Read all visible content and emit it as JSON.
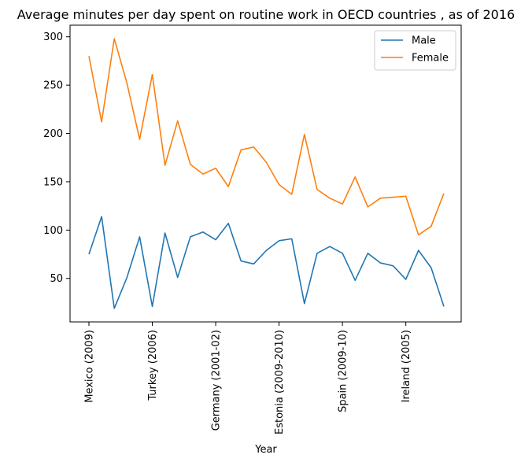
{
  "chart_data": {
    "type": "line",
    "title": "Average minutes per day spent on routine work in OECD countries , as of 2016",
    "xlabel": "Year",
    "ylabel": "",
    "ylim": [
      5,
      312
    ],
    "yticks": [
      50,
      100,
      150,
      200,
      250,
      300
    ],
    "x_tick_labels": [
      {
        "index": 0,
        "label": "Mexico (2009)"
      },
      {
        "index": 5,
        "label": "Turkey (2006)"
      },
      {
        "index": 10,
        "label": "Germany (2001-02)"
      },
      {
        "index": 15,
        "label": "Estonia (2009-2010)"
      },
      {
        "index": 20,
        "label": "Spain (2009-10)"
      },
      {
        "index": 25,
        "label": "Ireland (2005)"
      }
    ],
    "point_count": 29,
    "grid": false,
    "legend_position": "top-right",
    "series": [
      {
        "name": "Male",
        "color": "#1f77b4",
        "values": [
          75,
          114,
          19,
          51,
          93,
          21,
          97,
          51,
          93,
          98,
          90,
          107,
          68,
          65,
          79,
          89,
          91,
          24,
          76,
          83,
          76,
          48,
          76,
          66,
          63,
          49,
          79,
          61,
          21
        ]
      },
      {
        "name": "Female",
        "color": "#ff7f0e",
        "values": [
          280,
          212,
          298,
          252,
          194,
          261,
          167,
          213,
          168,
          158,
          164,
          145,
          183,
          186,
          170,
          147,
          137,
          199,
          142,
          133,
          127,
          155,
          124,
          133,
          134,
          135,
          95,
          104,
          138
        ]
      }
    ]
  }
}
